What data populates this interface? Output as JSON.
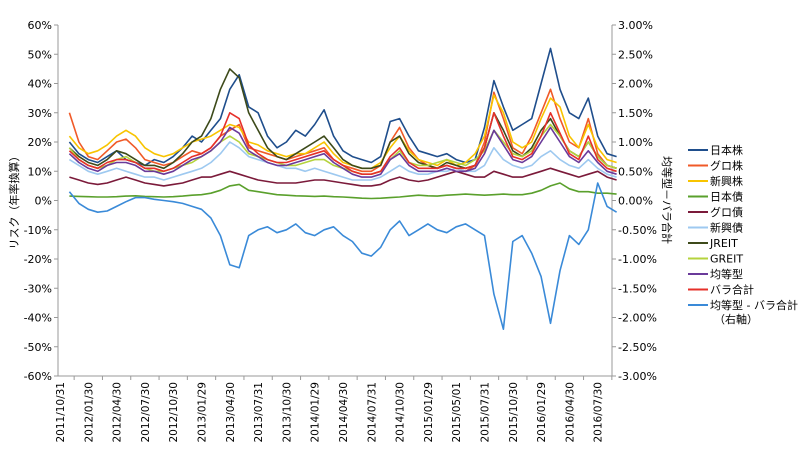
{
  "chart_data": {
    "type": "line",
    "title": "",
    "ylabel": "リスク（年率換算）",
    "y2label": "均等型－バラ合計",
    "ylim": [
      -60,
      60
    ],
    "y2lim": [
      -3.0,
      3.0
    ],
    "yticks": [
      "60%",
      "50%",
      "40%",
      "30%",
      "20%",
      "10%",
      "0%",
      "-10%",
      "-20%",
      "-30%",
      "-40%",
      "-50%",
      "-60%"
    ],
    "y2ticks": [
      "3.00%",
      "2.50%",
      "2.00%",
      "1.50%",
      "1.00%",
      "0.50%",
      "0.00%",
      "-0.50%",
      "-1.00%",
      "-1.50%",
      "-2.00%",
      "-2.50%",
      "-3.00%"
    ],
    "xticks": [
      "2011/10/31",
      "2012/01/30",
      "2012/04/30",
      "2012/07/30",
      "2012/10/30",
      "2013/01/29",
      "2013/04/30",
      "2013/07/31",
      "2013/10/30",
      "2014/01/29",
      "2014/04/30",
      "2014/07/31",
      "2014/10/30",
      "2015/01/29",
      "2015/05/01",
      "2015/07/31",
      "2015/10/30",
      "2016/01/29",
      "2016/04/30",
      "2016/07/30"
    ],
    "grid": false,
    "legend_placement": "right",
    "x": [
      "2011/11",
      "2011/12",
      "2012/01",
      "2012/02",
      "2012/03",
      "2012/04",
      "2012/05",
      "2012/06",
      "2012/07",
      "2012/08",
      "2012/09",
      "2012/10",
      "2012/11",
      "2012/12",
      "2013/01",
      "2013/02",
      "2013/03",
      "2013/04",
      "2013/05",
      "2013/06",
      "2013/07",
      "2013/08",
      "2013/09",
      "2013/10",
      "2013/11",
      "2013/12",
      "2014/01",
      "2014/02",
      "2014/03",
      "2014/04",
      "2014/05",
      "2014/06",
      "2014/07",
      "2014/08",
      "2014/09",
      "2014/10",
      "2014/11",
      "2014/12",
      "2015/01",
      "2015/02",
      "2015/03",
      "2015/04",
      "2015/05",
      "2015/06",
      "2015/07",
      "2015/08",
      "2015/09",
      "2015/10",
      "2015/11",
      "2015/12",
      "2016/01",
      "2016/02",
      "2016/03",
      "2016/04",
      "2016/05",
      "2016/06",
      "2016/07",
      "2016/08",
      "2016/09"
    ],
    "series": [
      {
        "name": "日本株",
        "color": "#1f4e8c",
        "axis": "left",
        "values": [
          20,
          16,
          14,
          13,
          15,
          17,
          14,
          13,
          12,
          14,
          13,
          15,
          18,
          22,
          20,
          24,
          28,
          38,
          43,
          32,
          30,
          22,
          18,
          20,
          24,
          22,
          26,
          31,
          22,
          17,
          15,
          14,
          13,
          15,
          27,
          28,
          22,
          17,
          16,
          15,
          16,
          14,
          13,
          14,
          25,
          41,
          32,
          24,
          26,
          28,
          40,
          52,
          38,
          30,
          28,
          35,
          22,
          16,
          15
        ]
      },
      {
        "name": "グロ株",
        "color": "#f05a28",
        "axis": "left",
        "values": [
          30,
          20,
          15,
          14,
          17,
          20,
          21,
          18,
          14,
          13,
          12,
          13,
          15,
          17,
          16,
          18,
          22,
          24,
          26,
          18,
          17,
          16,
          15,
          14,
          15,
          16,
          17,
          18,
          14,
          12,
          11,
          10,
          10,
          12,
          20,
          25,
          18,
          14,
          12,
          11,
          12,
          11,
          10,
          12,
          20,
          37,
          28,
          18,
          16,
          22,
          30,
          38,
          28,
          20,
          18,
          28,
          16,
          12,
          11
        ]
      },
      {
        "name": "新興株",
        "color": "#f8c400",
        "axis": "left",
        "values": [
          22,
          18,
          16,
          17,
          19,
          22,
          24,
          22,
          18,
          16,
          15,
          16,
          18,
          20,
          21,
          22,
          24,
          26,
          25,
          20,
          19,
          17,
          16,
          15,
          16,
          16,
          18,
          20,
          16,
          13,
          12,
          11,
          11,
          13,
          18,
          22,
          17,
          14,
          13,
          12,
          14,
          12,
          13,
          16,
          22,
          36,
          30,
          20,
          18,
          20,
          28,
          35,
          32,
          22,
          18,
          26,
          18,
          14,
          13
        ]
      },
      {
        "name": "日本債",
        "color": "#5aa02c",
        "axis": "left",
        "values": [
          1.5,
          1.4,
          1.3,
          1.2,
          1.2,
          1.3,
          1.5,
          1.6,
          1.4,
          1.3,
          1.2,
          1.3,
          1.5,
          1.8,
          2,
          2.5,
          3.5,
          5,
          5.5,
          3.5,
          3,
          2.5,
          2,
          1.8,
          1.6,
          1.5,
          1.4,
          1.5,
          1.3,
          1.2,
          1,
          0.8,
          0.7,
          0.8,
          1,
          1.2,
          1.5,
          1.8,
          1.6,
          1.5,
          1.8,
          2,
          2.2,
          2,
          1.8,
          2,
          2.2,
          2,
          2,
          2.5,
          3.5,
          5,
          6,
          4,
          3,
          3,
          2.5,
          2.5,
          2.2
        ]
      },
      {
        "name": "グロ債",
        "color": "#7b1a3a",
        "axis": "left",
        "values": [
          8,
          7,
          6,
          5.5,
          6,
          7,
          8,
          7,
          6,
          5.5,
          5,
          5.5,
          6,
          7,
          8,
          8,
          9,
          10,
          9,
          8,
          7,
          6.5,
          6,
          6,
          6,
          6.5,
          7,
          7,
          6.5,
          6,
          5.5,
          5,
          5,
          5.5,
          7,
          8,
          7,
          6.5,
          7,
          8,
          9,
          10,
          9,
          8,
          8,
          10,
          9,
          8,
          8,
          9,
          10,
          11,
          10,
          9,
          8,
          9,
          10,
          8,
          7
        ]
      },
      {
        "name": "新興債",
        "color": "#9ec9f0",
        "axis": "left",
        "values": [
          14,
          12,
          10,
          9,
          10,
          11,
          10,
          9,
          8,
          8,
          7,
          8,
          9,
          10,
          11,
          13,
          16,
          20,
          18,
          15,
          14,
          13,
          12,
          11,
          11,
          10,
          11,
          10,
          9,
          8,
          7,
          7,
          7,
          8,
          10,
          12,
          10,
          9,
          9,
          10,
          10,
          11,
          10,
          10,
          12,
          18,
          14,
          12,
          11,
          12,
          15,
          17,
          14,
          12,
          11,
          14,
          11,
          9,
          8
        ]
      },
      {
        "name": "JREIT",
        "color": "#3d4a1a",
        "axis": "left",
        "values": [
          18,
          15,
          13,
          12,
          14,
          17,
          16,
          14,
          12,
          12,
          11,
          13,
          16,
          20,
          22,
          28,
          38,
          45,
          42,
          30,
          24,
          18,
          15,
          14,
          16,
          18,
          20,
          22,
          18,
          14,
          12,
          11,
          11,
          12,
          20,
          22,
          16,
          13,
          12,
          11,
          13,
          12,
          11,
          12,
          18,
          30,
          24,
          17,
          15,
          18,
          24,
          28,
          22,
          17,
          15,
          20,
          15,
          12,
          11
        ]
      },
      {
        "name": "GREIT",
        "color": "#b5d33d",
        "axis": "left",
        "values": [
          18,
          14,
          12,
          11,
          12,
          14,
          15,
          13,
          11,
          10,
          10,
          11,
          12,
          13,
          15,
          17,
          20,
          22,
          20,
          16,
          15,
          14,
          13,
          12,
          12,
          13,
          14,
          14,
          12,
          11,
          10,
          9,
          9,
          10,
          14,
          17,
          13,
          12,
          12,
          13,
          14,
          13,
          12,
          14,
          17,
          24,
          20,
          16,
          15,
          17,
          22,
          26,
          22,
          17,
          15,
          20,
          15,
          12,
          11
        ]
      },
      {
        "name": "均等型",
        "color": "#6a3a9a",
        "axis": "left",
        "values": [
          16,
          13,
          11,
          10,
          12,
          13,
          13,
          12,
          10,
          10,
          9,
          10,
          12,
          14,
          15,
          17,
          20,
          25,
          23,
          17,
          15,
          13,
          12,
          12,
          13,
          14,
          15,
          16,
          13,
          11,
          9,
          8,
          8,
          9,
          14,
          16,
          12,
          10,
          10,
          10,
          11,
          10,
          10,
          11,
          16,
          24,
          19,
          14,
          13,
          15,
          20,
          25,
          20,
          15,
          13,
          17,
          13,
          10,
          9
        ]
      },
      {
        "name": "バラ合計",
        "color": "#e6302a",
        "axis": "left",
        "values": [
          17,
          14,
          12,
          11,
          13,
          14,
          14,
          13,
          11,
          11,
          10,
          11,
          13,
          15,
          16,
          18,
          22,
          30,
          28,
          19,
          16,
          14,
          13,
          13,
          14,
          15,
          16,
          17,
          14,
          12,
          10,
          9,
          9,
          10,
          15,
          18,
          13,
          11,
          11,
          11,
          12,
          11,
          11,
          12,
          18,
          30,
          22,
          15,
          14,
          16,
          22,
          30,
          23,
          16,
          14,
          22,
          14,
          11,
          10
        ]
      },
      {
        "name": "均等型 - バラ合計",
        "name2": "（右軸）",
        "color": "#3a8ad8",
        "axis": "right",
        "values": [
          0.15,
          -0.05,
          -0.15,
          -0.2,
          -0.18,
          -0.1,
          -0.02,
          0.05,
          0.05,
          0.02,
          0,
          -0.02,
          -0.05,
          -0.1,
          -0.15,
          -0.3,
          -0.6,
          -1.1,
          -1.15,
          -0.6,
          -0.5,
          -0.45,
          -0.55,
          -0.5,
          -0.4,
          -0.55,
          -0.6,
          -0.5,
          -0.45,
          -0.6,
          -0.7,
          -0.9,
          -0.95,
          -0.8,
          -0.5,
          -0.35,
          -0.6,
          -0.5,
          -0.4,
          -0.5,
          -0.55,
          -0.45,
          -0.4,
          -0.5,
          -0.6,
          -1.6,
          -2.2,
          -0.7,
          -0.6,
          -0.9,
          -1.3,
          -2.1,
          -1.2,
          -0.6,
          -0.75,
          -0.5,
          0.3,
          -0.1,
          -0.2
        ]
      }
    ]
  }
}
